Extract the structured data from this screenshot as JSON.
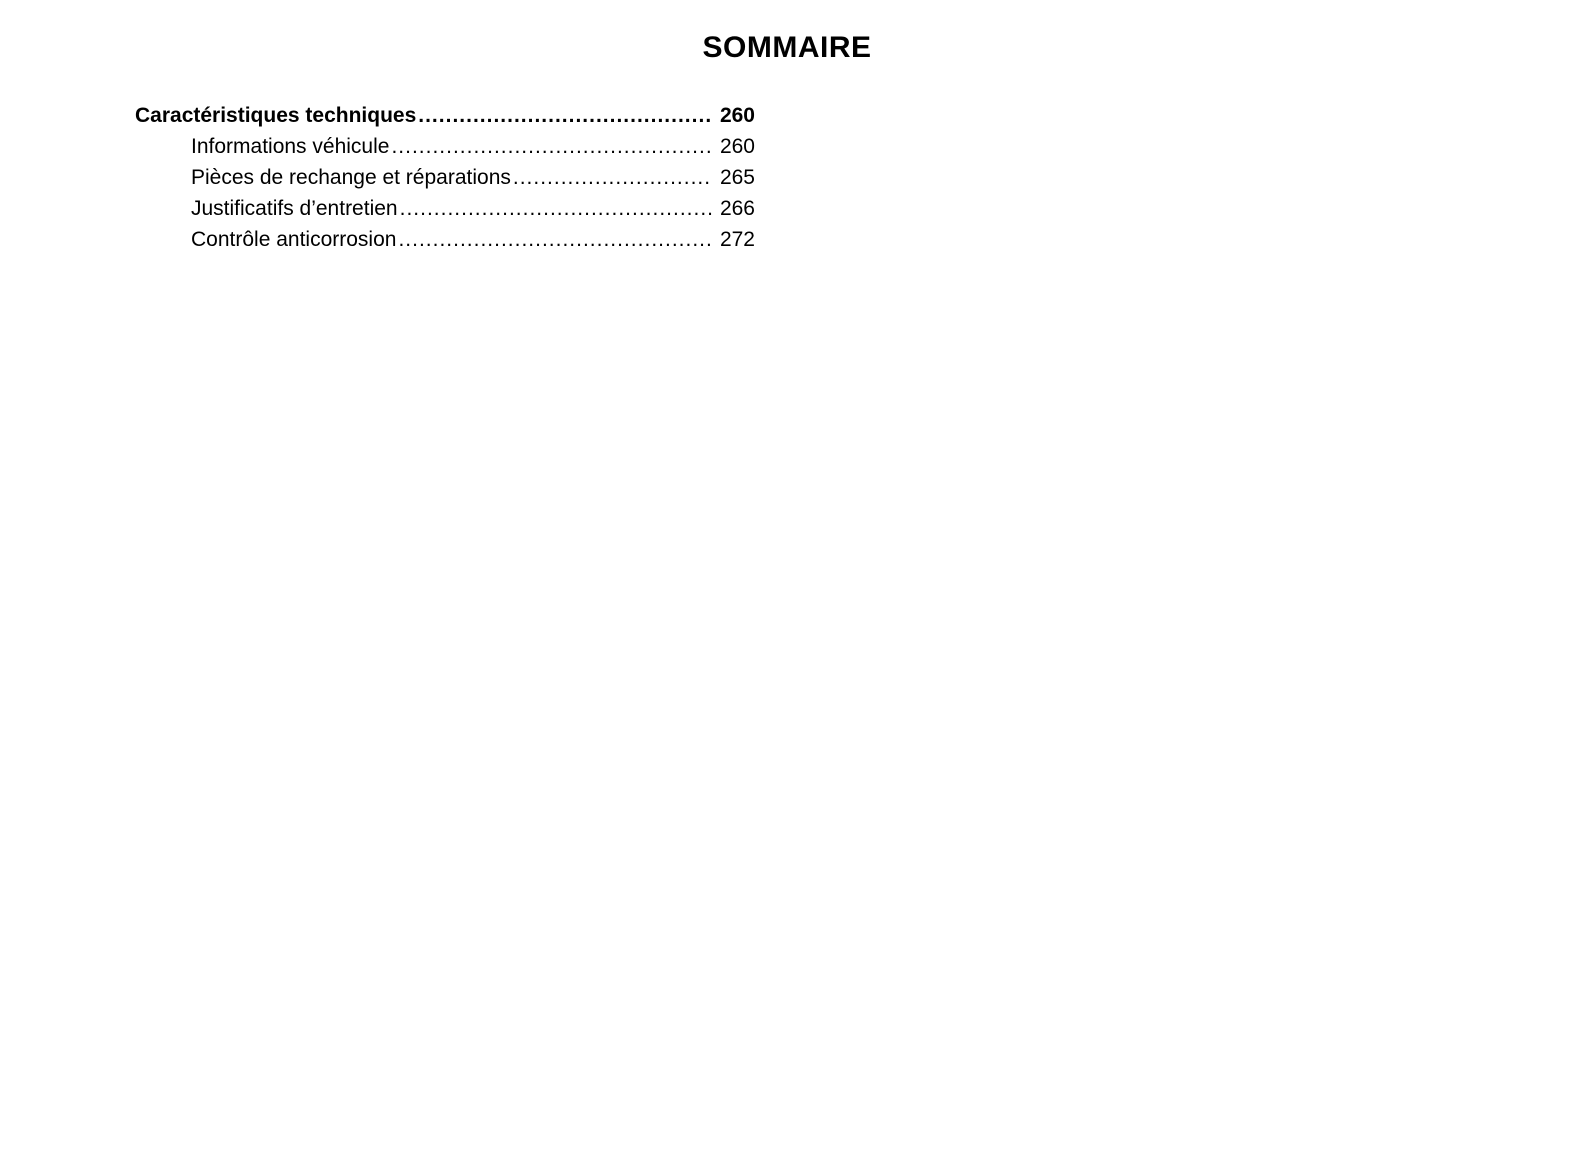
{
  "document": {
    "title": "SOMMAIRE",
    "toc": {
      "entries": [
        {
          "label": "Caractéristiques techniques",
          "page": "260"
        },
        {
          "label": "Informations véhicule",
          "page": "260"
        },
        {
          "label": "Pièces de rechange et réparations",
          "page": "265"
        },
        {
          "label": "Justificatifs d’entretien",
          "page": "266"
        },
        {
          "label": "Contrôle anticorrosion",
          "page": "272"
        }
      ]
    }
  }
}
